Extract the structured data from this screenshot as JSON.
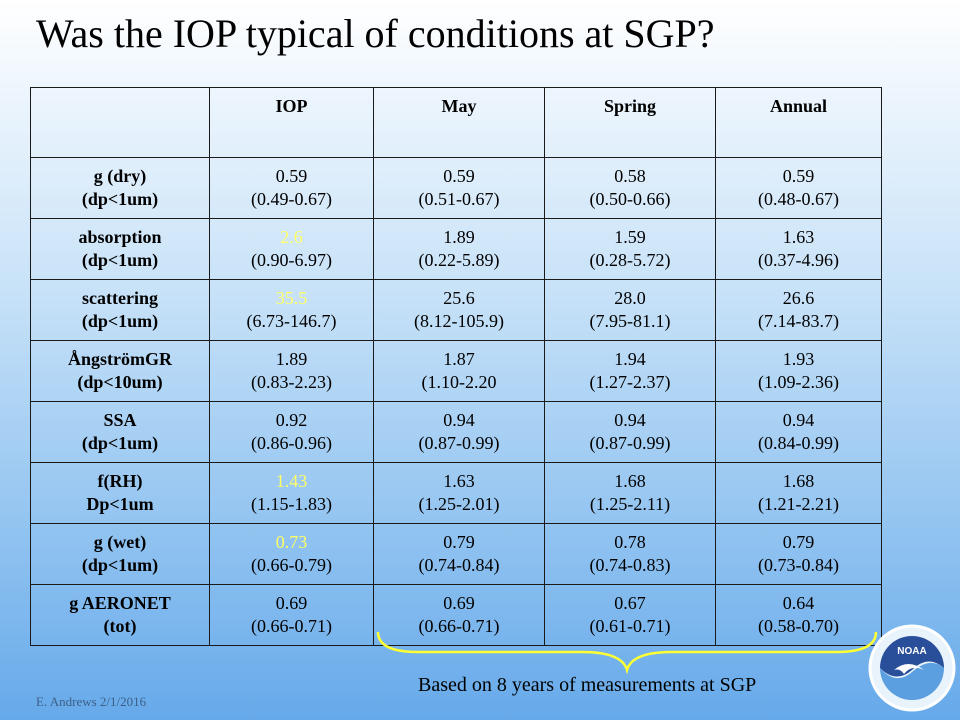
{
  "slide": {
    "title": "Was the IOP typical of conditions at SGP?",
    "note": "Based on 8 years of measurements at SGP",
    "footer": "E. Andrews   2/1/2016",
    "logo_text": "NOAA"
  },
  "colors": {
    "highlight": "#ffff66"
  },
  "table": {
    "headers": [
      "",
      "IOP",
      "May",
      "Spring",
      "Annual"
    ],
    "rows": [
      {
        "param": "g (dry)",
        "sub": "(dp<1um)",
        "cells": [
          {
            "value": "0.59",
            "range": "(0.49-0.67)",
            "highlight": false
          },
          {
            "value": "0.59",
            "range": "(0.51-0.67)"
          },
          {
            "value": "0.58",
            "range": "(0.50-0.66)"
          },
          {
            "value": "0.59",
            "range": "(0.48-0.67)"
          }
        ]
      },
      {
        "param": "absorption",
        "sub": "(dp<1um)",
        "cells": [
          {
            "value": "2.6",
            "range": "(0.90-6.97)",
            "highlight": true
          },
          {
            "value": "1.89",
            "range": "(0.22-5.89)"
          },
          {
            "value": "1.59",
            "range": "(0.28-5.72)"
          },
          {
            "value": "1.63",
            "range": "(0.37-4.96)"
          }
        ]
      },
      {
        "param": "scattering",
        "sub": "(dp<1um)",
        "cells": [
          {
            "value": "35.5",
            "range": "(6.73-146.7)",
            "highlight": true
          },
          {
            "value": "25.6",
            "range": "(8.12-105.9)"
          },
          {
            "value": "28.0",
            "range": "(7.95-81.1)"
          },
          {
            "value": "26.6",
            "range": "(7.14-83.7)"
          }
        ]
      },
      {
        "param": "ÅngströmGR",
        "sub": "(dp<10um)",
        "cells": [
          {
            "value": "1.89",
            "range": "(0.83-2.23)"
          },
          {
            "value": "1.87",
            "range": "(1.10-2.20"
          },
          {
            "value": "1.94",
            "range": "(1.27-2.37)"
          },
          {
            "value": "1.93",
            "range": "(1.09-2.36)"
          }
        ]
      },
      {
        "param": "SSA",
        "sub": "(dp<1um)",
        "cells": [
          {
            "value": "0.92",
            "range": "(0.86-0.96)"
          },
          {
            "value": "0.94",
            "range": "(0.87-0.99)"
          },
          {
            "value": "0.94",
            "range": "(0.87-0.99)"
          },
          {
            "value": "0.94",
            "range": "(0.84-0.99)"
          }
        ]
      },
      {
        "param": "f(RH)",
        "sub": "Dp<1um",
        "cells": [
          {
            "value": "1.43",
            "range": "(1.15-1.83)",
            "highlight": true
          },
          {
            "value": "1.63",
            "range": "(1.25-2.01)"
          },
          {
            "value": "1.68",
            "range": "(1.25-2.11)"
          },
          {
            "value": "1.68",
            "range": "(1.21-2.21)"
          }
        ]
      },
      {
        "param": "g (wet)",
        "sub": "(dp<1um)",
        "cells": [
          {
            "value": "0.73",
            "range": "(0.66-0.79)",
            "highlight": true
          },
          {
            "value": "0.79",
            "range": "(0.74-0.84)"
          },
          {
            "value": "0.78",
            "range": "(0.74-0.83)"
          },
          {
            "value": "0.79",
            "range": "(0.73-0.84)"
          }
        ]
      },
      {
        "param": "g AERONET",
        "sub": "(tot)",
        "cells": [
          {
            "value": "0.69",
            "range": "(0.66-0.71)"
          },
          {
            "value": "0.69",
            "range": "(0.66-0.71)"
          },
          {
            "value": "0.67",
            "range": "(0.61-0.71)"
          },
          {
            "value": "0.64",
            "range": "(0.58-0.70)"
          }
        ]
      }
    ]
  }
}
